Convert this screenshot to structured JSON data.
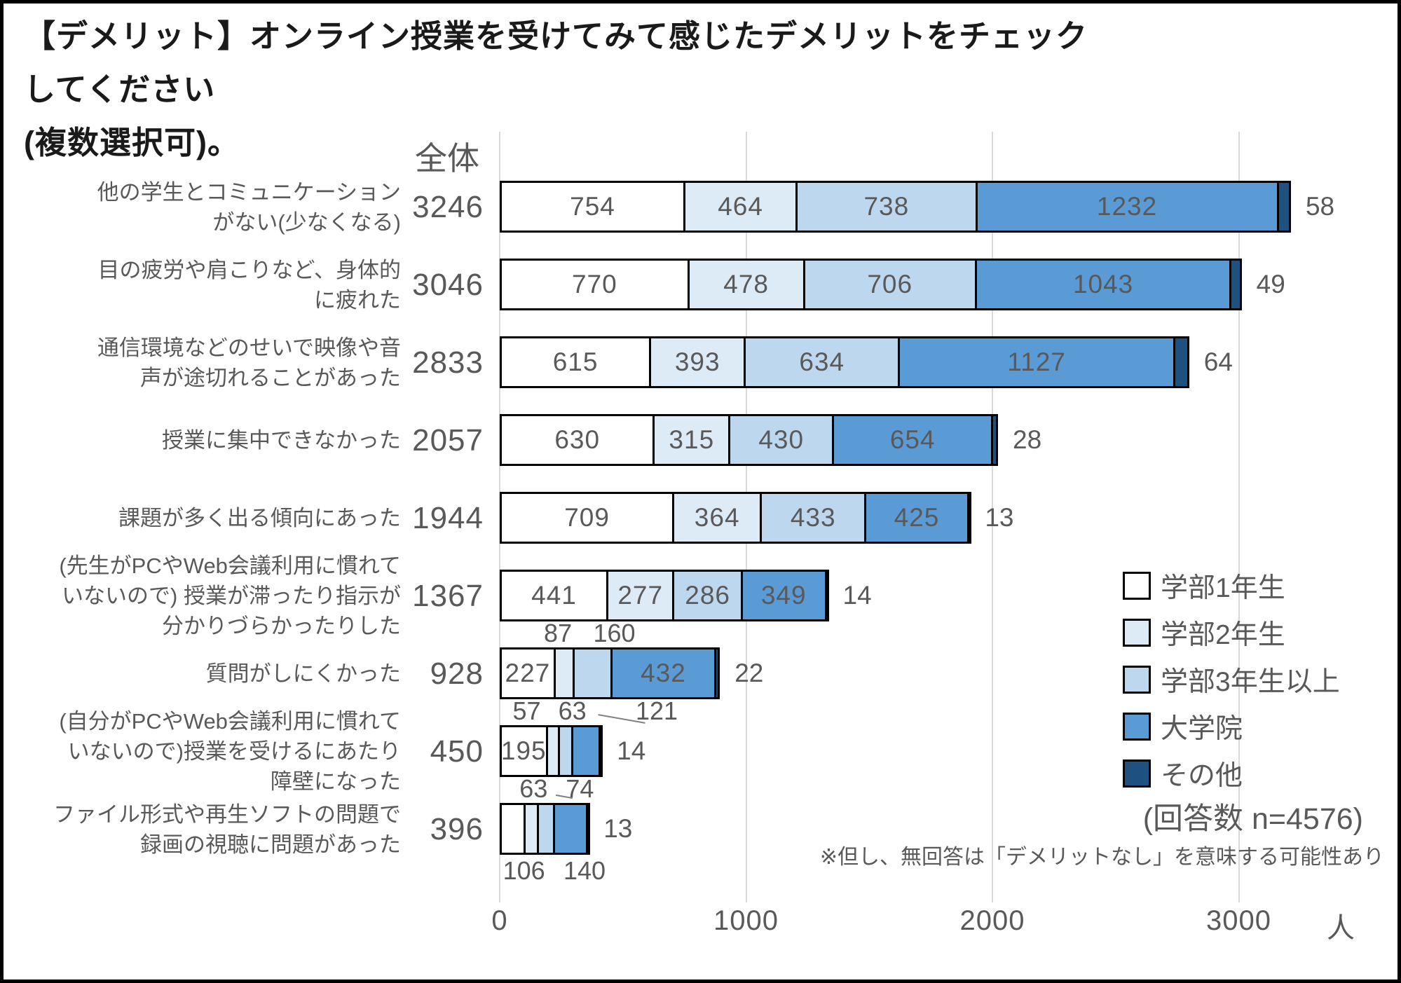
{
  "title": "【デメリット】オンライン授業を受けてみて感じたデメリットをチェックしてください\n(複数選択可)。",
  "chart_data": {
    "type": "bar",
    "orientation": "horizontal",
    "stacked": true,
    "grid": true,
    "xlim": [
      0,
      3400
    ],
    "x_ticks": [
      0,
      1000,
      2000,
      3000
    ],
    "unit_label": "人",
    "total_header": "全体",
    "legend_position": "right-bottom",
    "respondents_label": "(回答数 n=4576)",
    "note": "※但し、無回答は「デメリットなし」を意味する可能性あり",
    "series": [
      {
        "key": "grade1",
        "name": "学部1年生",
        "color": "#ffffff"
      },
      {
        "key": "grade2",
        "name": "学部2年生",
        "color": "#ddebf7"
      },
      {
        "key": "grade3plus",
        "name": "学部3年生以上",
        "color": "#bdd7ee"
      },
      {
        "key": "graduate",
        "name": "大学院",
        "color": "#5b9bd5"
      },
      {
        "key": "other",
        "name": "その他",
        "color": "#1e5080"
      }
    ],
    "rows": [
      {
        "label": "他の学生とコミュニケーション\nがない(少なくなる)",
        "total": 3246,
        "segments": [
          {
            "v": 754,
            "lp": "in"
          },
          {
            "v": 464,
            "lp": "in"
          },
          {
            "v": 738,
            "lp": "in"
          },
          {
            "v": 1232,
            "lp": "in"
          },
          {
            "v": 58,
            "lp": "right"
          }
        ]
      },
      {
        "label": "目の疲労や肩こりなど、身体的\nに疲れた",
        "total": 3046,
        "segments": [
          {
            "v": 770,
            "lp": "in"
          },
          {
            "v": 478,
            "lp": "in"
          },
          {
            "v": 706,
            "lp": "in"
          },
          {
            "v": 1043,
            "lp": "in"
          },
          {
            "v": 49,
            "lp": "right"
          }
        ]
      },
      {
        "label": "通信環境などのせいで映像や音\n声が途切れることがあった",
        "total": 2833,
        "segments": [
          {
            "v": 615,
            "lp": "in"
          },
          {
            "v": 393,
            "lp": "in"
          },
          {
            "v": 634,
            "lp": "in"
          },
          {
            "v": 1127,
            "lp": "in"
          },
          {
            "v": 64,
            "lp": "right"
          }
        ]
      },
      {
        "label": "授業に集中できなかった",
        "total": 2057,
        "segments": [
          {
            "v": 630,
            "lp": "in"
          },
          {
            "v": 315,
            "lp": "in"
          },
          {
            "v": 430,
            "lp": "in"
          },
          {
            "v": 654,
            "lp": "in"
          },
          {
            "v": 28,
            "lp": "right"
          }
        ]
      },
      {
        "label": "課題が多く出る傾向にあった",
        "total": 1944,
        "segments": [
          {
            "v": 709,
            "lp": "in"
          },
          {
            "v": 364,
            "lp": "in"
          },
          {
            "v": 433,
            "lp": "in"
          },
          {
            "v": 425,
            "lp": "in"
          },
          {
            "v": 13,
            "lp": "right"
          }
        ]
      },
      {
        "label": "(先生がPCやWeb会議利用に慣れて\nいないので) 授業が滞ったり指示が\n分かりづらかったりした",
        "total": 1367,
        "segments": [
          {
            "v": 441,
            "lp": "in"
          },
          {
            "v": 277,
            "lp": "in"
          },
          {
            "v": 286,
            "lp": "in"
          },
          {
            "v": 349,
            "lp": "in"
          },
          {
            "v": 14,
            "lp": "right"
          }
        ]
      },
      {
        "label": "質問がしにくかった",
        "total": 928,
        "segments": [
          {
            "v": 227,
            "lp": "in"
          },
          {
            "v": 87,
            "lp": "above",
            "dx": -12
          },
          {
            "v": 160,
            "lp": "above",
            "dx": 25
          },
          {
            "v": 432,
            "lp": "in"
          },
          {
            "v": 22,
            "lp": "right"
          }
        ]
      },
      {
        "label": "(自分がPCやWeb会議利用に慣れて\nいないので)授業を受けるにあたり\n障壁になった",
        "total": 450,
        "segments": [
          {
            "v": 195,
            "lp": "in"
          },
          {
            "v": 57,
            "lp": "above",
            "dx": -40
          },
          {
            "v": 63,
            "lp": "above",
            "dx": 4
          },
          {
            "v": 121,
            "lp": "above",
            "dx": 92,
            "leader": true
          },
          {
            "v": 14,
            "lp": "right"
          }
        ]
      },
      {
        "label": "ファイル形式や再生ソフトの問題で\n録画の視聴に問題があった",
        "total": 396,
        "segments": [
          {
            "v": 106,
            "lp": "below",
            "dx": 16
          },
          {
            "v": 63,
            "lp": "above",
            "dx": 0
          },
          {
            "v": 74,
            "lp": "above",
            "dx": 42,
            "leader": true
          },
          {
            "v": 140,
            "lp": "below",
            "dx": 11
          },
          {
            "v": 13,
            "lp": "right"
          }
        ]
      }
    ]
  }
}
